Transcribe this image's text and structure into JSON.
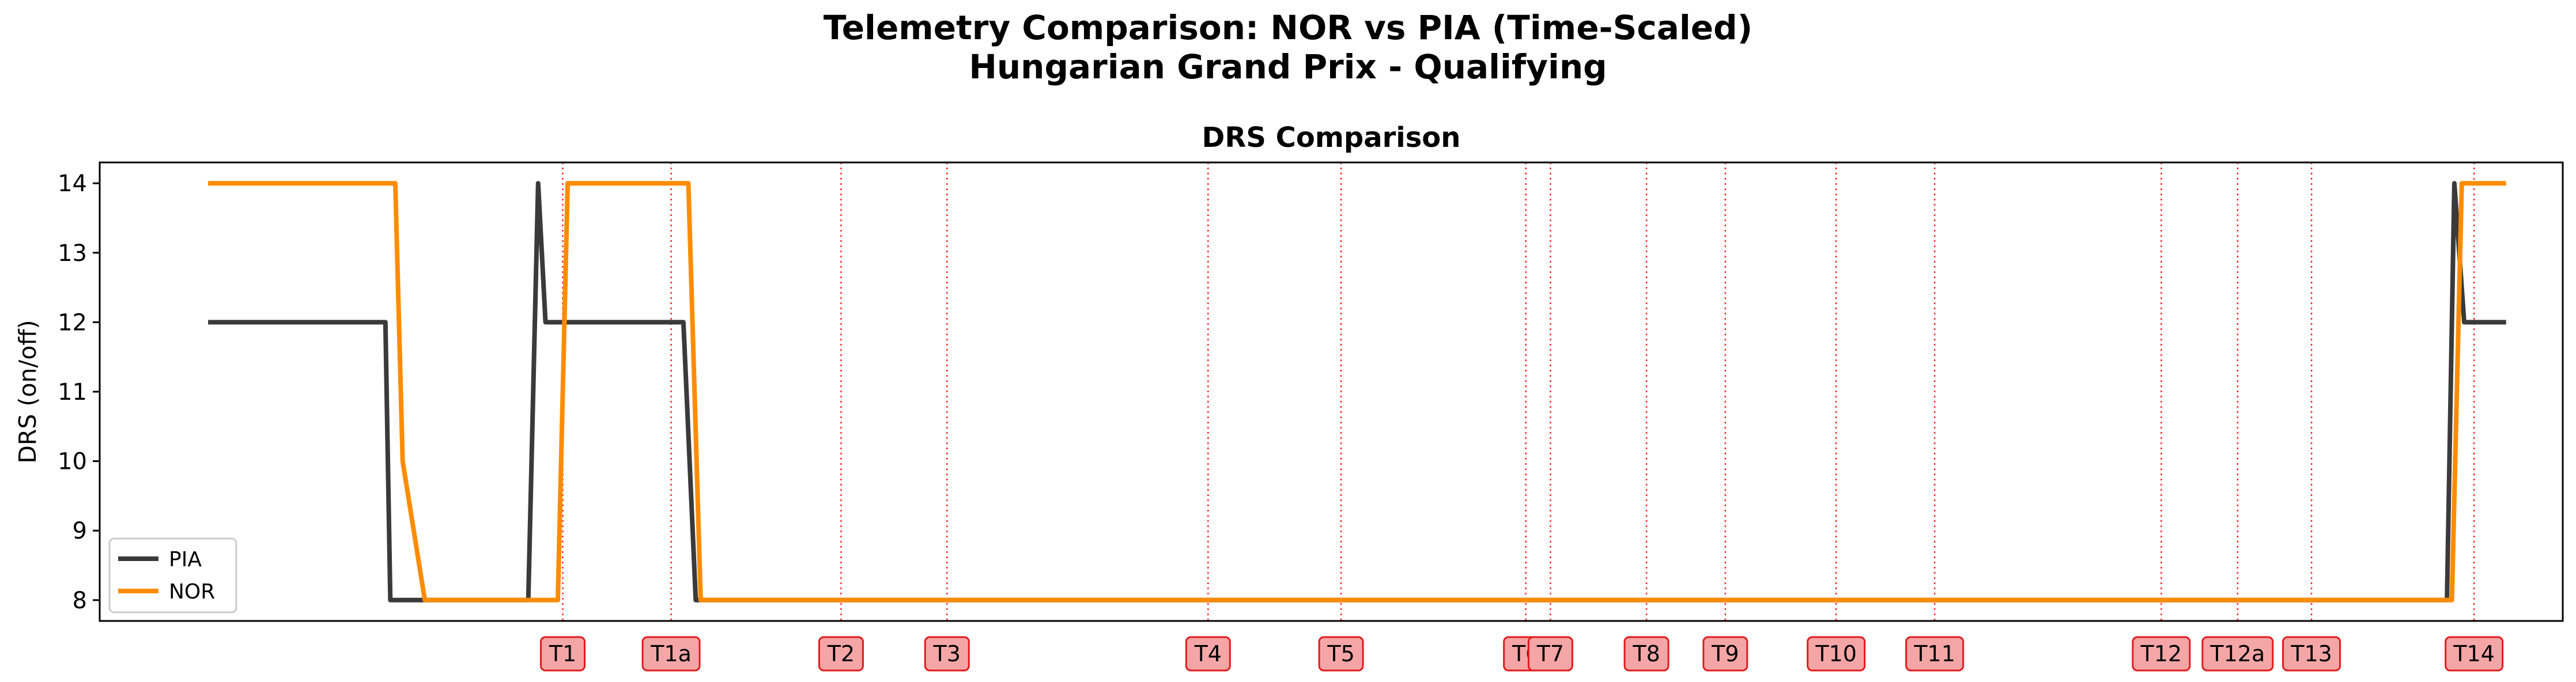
{
  "figure": {
    "title_line1": "Telemetry Comparison: NOR vs PIA (Time-Scaled)",
    "title_line2": "Hungarian Grand Prix - Qualifying"
  },
  "chart_data": {
    "type": "line",
    "title": "DRS Comparison",
    "xlabel": "",
    "ylabel": "DRS (on/off)",
    "ylim": [
      7.7,
      14.3
    ],
    "xlim": [
      0,
      100
    ],
    "yticks": [
      8,
      9,
      10,
      11,
      12,
      13,
      14
    ],
    "grid": false,
    "legend_position": "lower-left",
    "series": [
      {
        "name": "PIA",
        "color": "#3a3a3a",
        "x": [
          4.4,
          11.6,
          11.8,
          12.9,
          17.4,
          17.8,
          18.1,
          23.7,
          24.2,
          95.3,
          95.6,
          96.0,
          97.7
        ],
        "y": [
          12,
          12,
          8,
          8,
          8,
          14,
          12,
          12,
          8,
          8,
          14,
          12,
          12
        ]
      },
      {
        "name": "NOR",
        "color": "#ff8c00",
        "x": [
          4.4,
          12.0,
          12.3,
          13.2,
          18.6,
          19.0,
          23.9,
          24.4,
          95.5,
          95.9,
          97.7
        ],
        "y": [
          14,
          14,
          10,
          8,
          8,
          14,
          14,
          8,
          8,
          14,
          14
        ]
      }
    ],
    "corners": [
      {
        "label": "T1",
        "x": 18.8
      },
      {
        "label": "T1a",
        "x": 23.2
      },
      {
        "label": "T2",
        "x": 30.1
      },
      {
        "label": "T3",
        "x": 34.4
      },
      {
        "label": "T4",
        "x": 45.0
      },
      {
        "label": "T5",
        "x": 50.4
      },
      {
        "label": "T6",
        "x": 57.9
      },
      {
        "label": "T7",
        "x": 58.9
      },
      {
        "label": "T8",
        "x": 62.8
      },
      {
        "label": "T9",
        "x": 66.0
      },
      {
        "label": "T10",
        "x": 70.5
      },
      {
        "label": "T11",
        "x": 74.5
      },
      {
        "label": "T12",
        "x": 83.7
      },
      {
        "label": "T12a",
        "x": 86.8
      },
      {
        "label": "T13",
        "x": 89.8
      },
      {
        "label": "T14",
        "x": 96.4
      }
    ],
    "corner_line_color": "#ff0000",
    "corner_box_fill": "#f4a6a6",
    "corner_box_edge": "#e41a1c"
  }
}
